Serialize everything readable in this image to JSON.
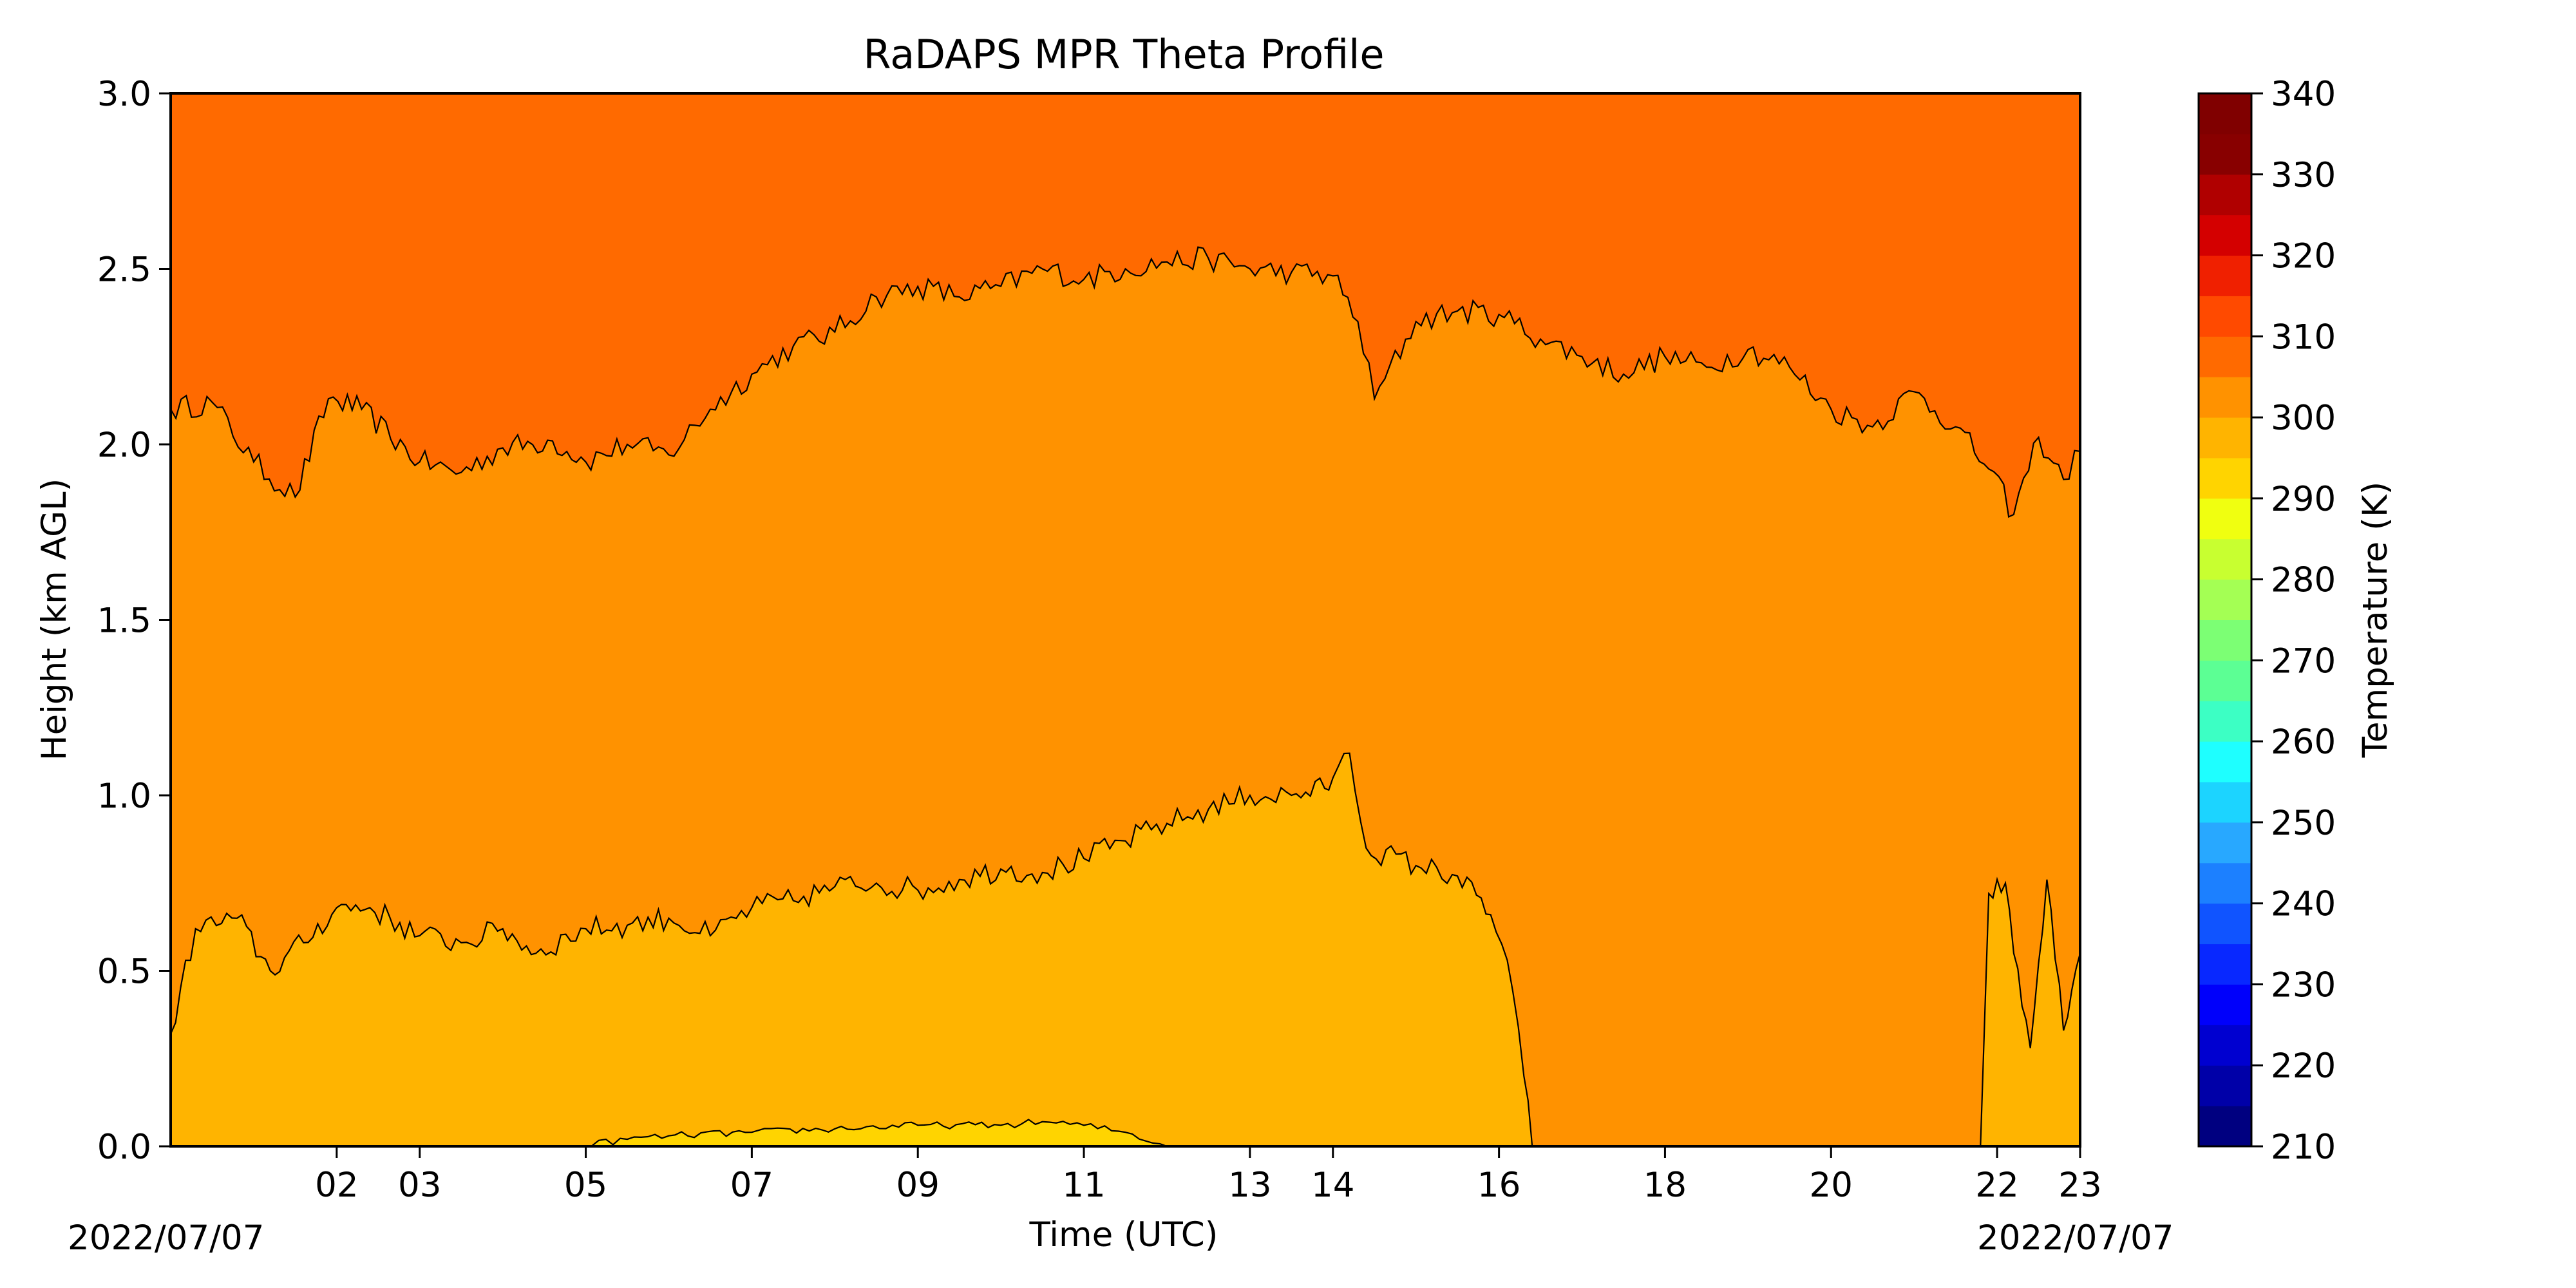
{
  "chart_data": {
    "type": "heatmap",
    "title": "RaDAPS MPR Theta Profile",
    "xlabel": "Time (UTC)",
    "ylabel": "Height (km AGL)",
    "x_range_hours": [
      0,
      23
    ],
    "x_ticks": [
      {
        "hour": 2,
        "label": "02"
      },
      {
        "hour": 3,
        "label": "03"
      },
      {
        "hour": 5,
        "label": "05"
      },
      {
        "hour": 7,
        "label": "07"
      },
      {
        "hour": 9,
        "label": "09"
      },
      {
        "hour": 11,
        "label": "11"
      },
      {
        "hour": 13,
        "label": "13"
      },
      {
        "hour": 14,
        "label": "14"
      },
      {
        "hour": 16,
        "label": "16"
      },
      {
        "hour": 18,
        "label": "18"
      },
      {
        "hour": 20,
        "label": "20"
      },
      {
        "hour": 22,
        "label": "22"
      },
      {
        "hour": 23,
        "label": "23"
      }
    ],
    "start_date_label": "2022/07/07",
    "end_date_label": "2022/07/07",
    "ylim": [
      0,
      3
    ],
    "y_ticks": [
      {
        "value": 0.0,
        "label": "0.0"
      },
      {
        "value": 0.5,
        "label": "0.5"
      },
      {
        "value": 1.0,
        "label": "1.0"
      },
      {
        "value": 1.5,
        "label": "1.5"
      },
      {
        "value": 2.0,
        "label": "2.0"
      },
      {
        "value": 2.5,
        "label": "2.5"
      },
      {
        "value": 3.0,
        "label": "3.0"
      }
    ],
    "colorbar": {
      "label": "Temperature (K)",
      "range": [
        210,
        340
      ],
      "level_step": 5,
      "tick_labels": [
        "210",
        "220",
        "230",
        "240",
        "250",
        "260",
        "270",
        "280",
        "290",
        "300",
        "310",
        "320",
        "330",
        "340"
      ],
      "level_colors": [
        "#000080",
        "#0000a8",
        "#0000d0",
        "#0000fb",
        "#0828ff",
        "#1054ff",
        "#1c80ff",
        "#28a8ff",
        "#1cd4ff",
        "#1effff",
        "#3cffc4",
        "#5cff94",
        "#7cff74",
        "#a4ff54",
        "#c8ff30",
        "#f0ff10",
        "#ffd400",
        "#ffb400",
        "#ff9200",
        "#ff6a00",
        "#ff4a00",
        "#f02000",
        "#d40000",
        "#b00000",
        "#880000",
        "#800000"
      ]
    },
    "regions": [
      {
        "level": "310-315 K",
        "color": "#ff6a00",
        "area": "above the 310 K contour, up to 3.0 km"
      },
      {
        "level": "305-310 K",
        "color": "#ff9200",
        "area": "between the 305 K and 310 K contours"
      },
      {
        "level": "300-305 K",
        "color": "#ffb400",
        "area": "below the 305 K contour near the surface"
      },
      {
        "level": "295-300 K",
        "color": "#ffd400",
        "area": "thin surface layer around 05-12 UTC"
      }
    ],
    "contours": {
      "k310_height_km": {
        "hours": [
          0.0,
          0.5,
          1.0,
          1.5,
          1.9,
          2.3,
          3.0,
          3.5,
          4.0,
          4.6,
          5.0,
          5.5,
          6.0,
          6.5,
          7.0,
          7.5,
          8.0,
          8.5,
          9.0,
          9.5,
          10.0,
          10.5,
          11.0,
          11.5,
          12.0,
          12.5,
          13.0,
          13.5,
          14.0,
          14.3,
          14.5,
          15.0,
          15.5,
          16.0,
          16.5,
          17.0,
          17.5,
          18.0,
          18.5,
          19.0,
          19.5,
          20.0,
          20.5,
          21.0,
          21.5,
          21.9,
          22.2,
          22.5,
          22.8,
          23.0
        ],
        "heights": [
          2.1,
          2.12,
          1.95,
          1.85,
          2.13,
          2.1,
          1.95,
          1.92,
          1.99,
          2.01,
          1.95,
          2.0,
          1.97,
          2.1,
          2.2,
          2.28,
          2.32,
          2.42,
          2.45,
          2.42,
          2.45,
          2.5,
          2.47,
          2.5,
          2.52,
          2.53,
          2.5,
          2.49,
          2.48,
          2.35,
          2.13,
          2.35,
          2.38,
          2.37,
          2.3,
          2.25,
          2.2,
          2.25,
          2.22,
          2.27,
          2.22,
          2.1,
          2.05,
          2.15,
          2.05,
          1.93,
          1.8,
          2.02,
          1.9,
          1.98
        ]
      },
      "k305_height_km": {
        "hours": [
          0.0,
          0.3,
          0.8,
          1.2,
          1.6,
          2.0,
          2.4,
          3.0,
          3.5,
          4.0,
          4.4,
          5.0,
          5.5,
          6.0,
          6.5,
          7.0,
          7.5,
          8.0,
          8.5,
          9.0,
          9.5,
          10.0,
          10.5,
          11.0,
          11.5,
          12.0,
          12.5,
          13.0,
          13.5,
          13.9,
          14.0,
          14.2,
          14.4,
          15.0,
          15.5,
          15.9,
          16.1,
          16.3,
          16.4
        ],
        "heights": [
          0.32,
          0.62,
          0.65,
          0.5,
          0.58,
          0.68,
          0.68,
          0.6,
          0.58,
          0.62,
          0.55,
          0.62,
          0.63,
          0.65,
          0.6,
          0.68,
          0.7,
          0.74,
          0.75,
          0.73,
          0.76,
          0.79,
          0.78,
          0.82,
          0.87,
          0.92,
          0.96,
          1.0,
          1.0,
          1.02,
          1.05,
          1.12,
          0.85,
          0.8,
          0.77,
          0.66,
          0.53,
          0.2,
          0.0
        ]
      },
      "k305_block_at_21_8_to_23": {
        "hours": [
          21.8,
          21.9,
          22.1,
          22.2,
          22.4,
          22.6,
          22.8,
          23.0,
          23.0,
          21.8
        ],
        "heights": [
          0.0,
          0.72,
          0.75,
          0.55,
          0.28,
          0.76,
          0.33,
          0.55,
          0.0,
          0.0
        ]
      },
      "k300_height_km": {
        "hours": [
          4.9,
          5.5,
          6.0,
          7.0,
          8.0,
          9.0,
          10.0,
          10.5,
          11.0,
          11.5,
          12.0
        ],
        "heights": [
          0.0,
          0.02,
          0.03,
          0.04,
          0.05,
          0.06,
          0.06,
          0.07,
          0.06,
          0.04,
          0.0
        ]
      }
    }
  }
}
